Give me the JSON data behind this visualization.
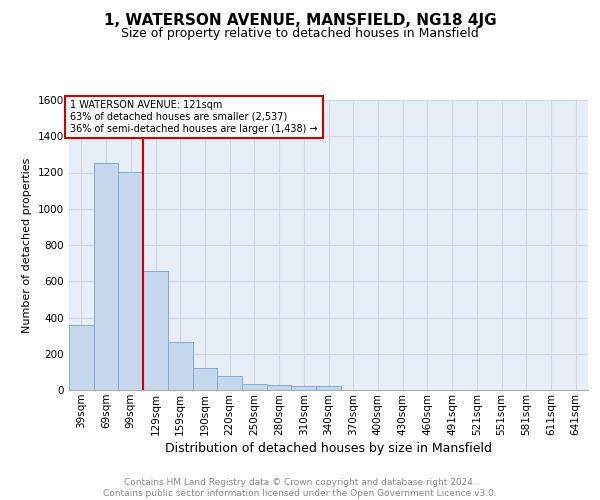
{
  "title": "1, WATERSON AVENUE, MANSFIELD, NG18 4JG",
  "subtitle": "Size of property relative to detached houses in Mansfield",
  "xlabel": "Distribution of detached houses by size in Mansfield",
  "ylabel": "Number of detached properties",
  "bar_color": "#c5d8ee",
  "bar_edge_color": "#7badd4",
  "background_color": "#e8eef7",
  "grid_color": "#d0d8e8",
  "categories": [
    "39sqm",
    "69sqm",
    "99sqm",
    "129sqm",
    "159sqm",
    "190sqm",
    "220sqm",
    "250sqm",
    "280sqm",
    "310sqm",
    "340sqm",
    "370sqm",
    "400sqm",
    "430sqm",
    "460sqm",
    "491sqm",
    "521sqm",
    "551sqm",
    "581sqm",
    "611sqm",
    "641sqm"
  ],
  "values": [
    360,
    1255,
    1205,
    655,
    265,
    120,
    75,
    35,
    25,
    20,
    20,
    0,
    0,
    0,
    0,
    0,
    0,
    0,
    0,
    0,
    0
  ],
  "ylim": [
    0,
    1600
  ],
  "yticks": [
    0,
    200,
    400,
    600,
    800,
    1000,
    1200,
    1400,
    1600
  ],
  "property_line_x": 2.5,
  "annotation_text1": "1 WATERSON AVENUE: 121sqm",
  "annotation_text2": "63% of detached houses are smaller (2,537)",
  "annotation_text3": "36% of semi-detached houses are larger (1,438) →",
  "annotation_box_color": "#ffffff",
  "annotation_border_color": "#cc0000",
  "property_line_color": "#cc0000",
  "footer_text": "Contains HM Land Registry data © Crown copyright and database right 2024.\nContains public sector information licensed under the Open Government Licence v3.0.",
  "title_fontsize": 11,
  "subtitle_fontsize": 9,
  "xlabel_fontsize": 9,
  "ylabel_fontsize": 8,
  "tick_fontsize": 7.5,
  "annotation_fontsize": 7,
  "footer_fontsize": 6.5
}
